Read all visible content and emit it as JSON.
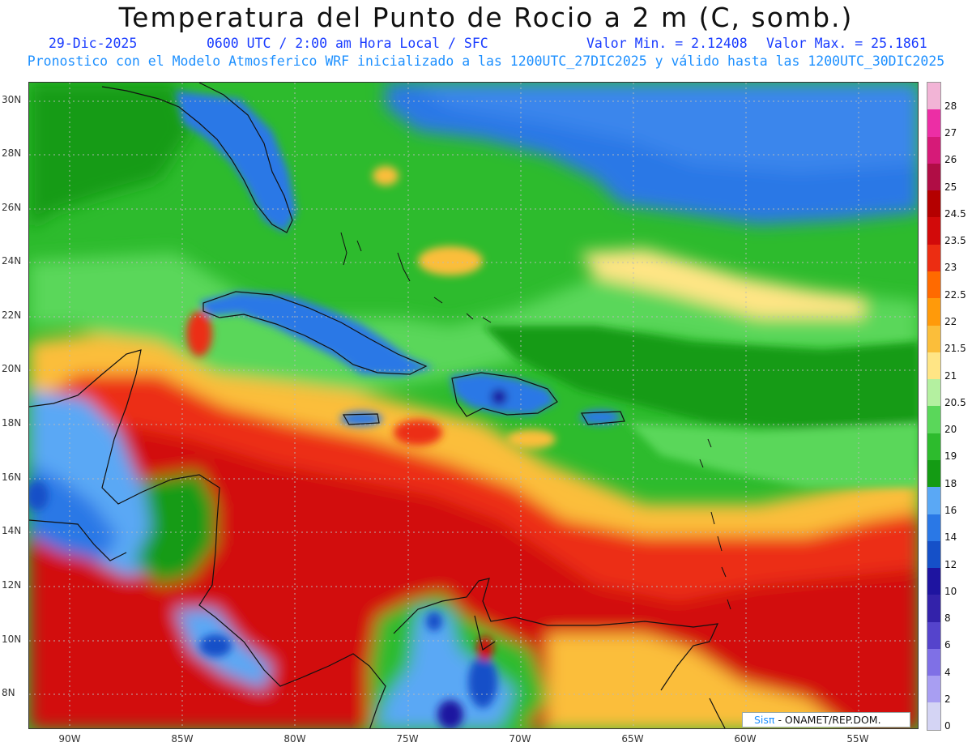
{
  "title": "Temperatura del Punto de Rocio a 2 m (C, somb.)",
  "date": "29-Dic-2025",
  "time_info": "0600 UTC / 2:00 am Hora Local / SFC",
  "valor_min": "Valor Min. = 2.12408",
  "valor_max": "Valor Max. = 25.1861",
  "model_info": "Pronostico con el Modelo Atmosferico WRF inicializado a las 1200UTC_27DIC2025 y válido hasta las  1200UTC_30DIC2025",
  "credit_brand": "Sisπ",
  "credit_org": "- ONAMET/REP.DOM.",
  "lat_labels": [
    "30N",
    "28N",
    "26N",
    "24N",
    "22N",
    "20N",
    "18N",
    "16N",
    "14N",
    "12N",
    "10N",
    "8N"
  ],
  "lon_labels": [
    "90W",
    "85W",
    "80W",
    "75W",
    "70W",
    "65W",
    "60W",
    "55W"
  ],
  "colorbar": {
    "labels": [
      "28",
      "27",
      "26",
      "25",
      "24.5",
      "23.5",
      "23",
      "22.5",
      "22",
      "21.5",
      "21",
      "20.5",
      "20",
      "19",
      "18",
      "16",
      "14",
      "12",
      "10",
      "8",
      "6",
      "4",
      "2",
      "0"
    ],
    "colors": [
      "#f2b4d6",
      "#ec2ea5",
      "#d61a78",
      "#b00d45",
      "#b40000",
      "#d20a0a",
      "#ec2d12",
      "#ff6a00",
      "#ff9a0a",
      "#fbbe3a",
      "#ffe585",
      "#b4f0a0",
      "#5ad75a",
      "#2dbb2d",
      "#149b14",
      "#5aa8f5",
      "#2a78e6",
      "#1550c8",
      "#1e14a0",
      "#3322aa",
      "#5544cc",
      "#7f70e6",
      "#a89ef2",
      "#d4d4f4"
    ]
  }
}
